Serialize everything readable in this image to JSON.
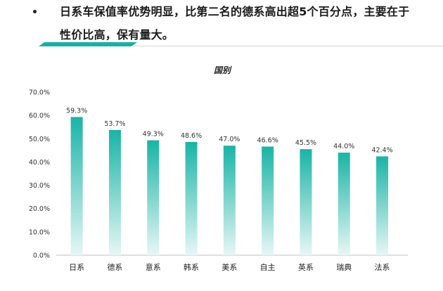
{
  "bullet": {
    "marker": "•",
    "text": "日系车保值率优势明显，比第二名的德系高出超5个百分点，主要在于性价比高，保有量大。"
  },
  "colors": {
    "bar_top": "#19b4a6",
    "bar_bottom": "#e6f7f5",
    "divider_dark": "#18b0a4",
    "divider_light": "#d5d5d5"
  },
  "chart_data": {
    "type": "bar",
    "title": "国别",
    "categories": [
      "日系",
      "德系",
      "意系",
      "韩系",
      "美系",
      "自主",
      "英系",
      "瑞典",
      "法系"
    ],
    "values": [
      59.3,
      53.7,
      49.3,
      48.6,
      47.0,
      46.6,
      45.5,
      44.0,
      42.4
    ],
    "value_labels": [
      "59.3%",
      "53.7%",
      "49.3%",
      "48.6%",
      "47.0%",
      "46.6%",
      "45.5%",
      "44.0%",
      "42.4%"
    ],
    "ylim": [
      0,
      70
    ],
    "yticks": [
      0,
      10,
      20,
      30,
      40,
      50,
      60,
      70
    ],
    "ytick_labels": [
      "0.0%",
      "10.0%",
      "20.0%",
      "30.0%",
      "40.0%",
      "50.0%",
      "60.0%",
      "70.0%"
    ],
    "xlabel": "",
    "ylabel": "",
    "grid": false,
    "legend": "none"
  }
}
